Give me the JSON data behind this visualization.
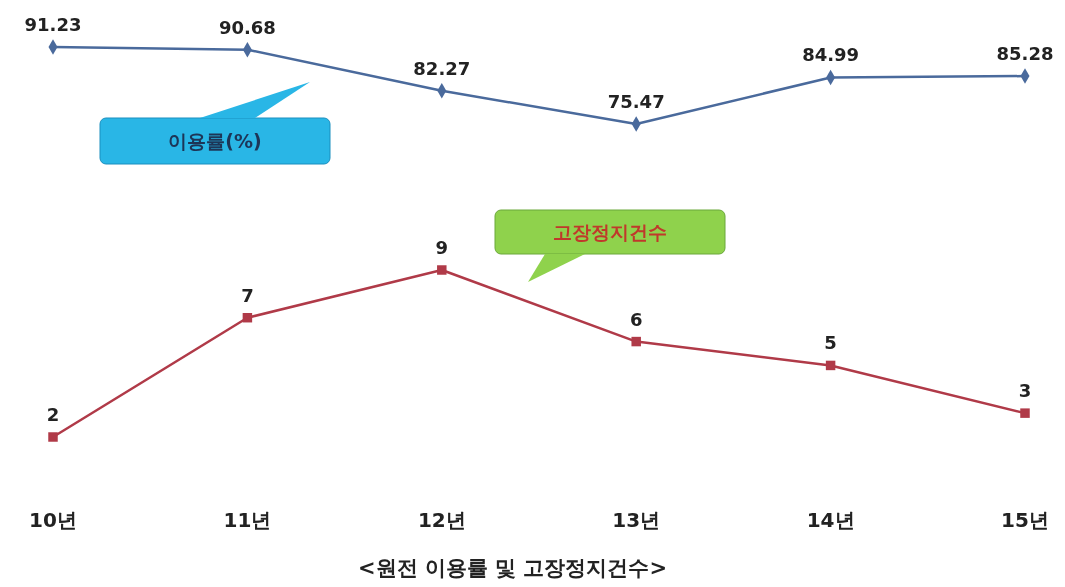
{
  "chart_data": [
    {
      "type": "line",
      "categories": [
        null,
        null,
        null,
        null,
        null,
        null
      ],
      "series": [
        {
          "name": "이용률(%)",
          "color": "#4a6a9c",
          "marker": "diamond",
          "values": [
            91.23,
            90.68,
            82.27,
            75.47,
            84.99,
            85.28
          ]
        }
      ],
      "tick_labels": false,
      "data_labels": true
    },
    {
      "type": "line",
      "title": "<원전 이용률 및 고장정지건수>",
      "categories": [
        "10년",
        "11년",
        "12년",
        "13년",
        "14년",
        "15년"
      ],
      "series": [
        {
          "name": "고장정지건수",
          "color": "#b03a48",
          "marker": "square",
          "values": [
            2,
            7,
            9,
            6,
            5,
            3
          ]
        }
      ],
      "tick_labels": "x",
      "data_labels": true
    }
  ]
}
